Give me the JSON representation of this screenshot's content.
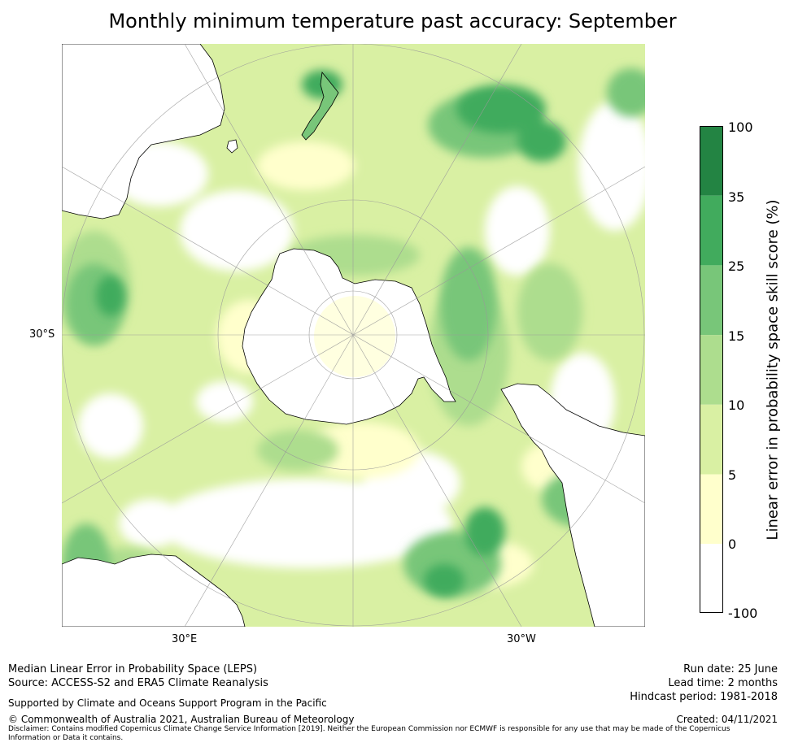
{
  "title": "Monthly minimum temperature past accuracy: September",
  "map": {
    "projection": "south-polar stereographic",
    "lat_labels": [
      "30°S"
    ],
    "lon_labels": [
      {
        "name": "east",
        "text": "30°E"
      },
      {
        "name": "west",
        "text": "30°W"
      }
    ],
    "colors": {
      "land_outline": "#000000",
      "graticule": "#999999",
      "ocean_background": "#ffffff"
    }
  },
  "colorbar": {
    "label": "Linear error in probability space skill score (%)",
    "ticks": [
      "100",
      "35",
      "25",
      "15",
      "10",
      "5",
      "0",
      "-100"
    ],
    "bins": [
      {
        "range": "35 to 100",
        "color": "#238443"
      },
      {
        "range": "25 to 35",
        "color": "#41ab5d"
      },
      {
        "range": "15 to 25",
        "color": "#78c679"
      },
      {
        "range": "10 to 15",
        "color": "#addd8e"
      },
      {
        "range": "5 to 10",
        "color": "#d9f0a3"
      },
      {
        "range": "0 to 5",
        "color": "#ffffcc"
      },
      {
        "range": "-100 to 0",
        "color": "#ffffff"
      }
    ]
  },
  "footer": {
    "left_line1": "Median Linear Error in Probability Space (LEPS)",
    "left_line2": "Source: ACCESS-S2 and ERA5 Climate Reanalysis",
    "support": "Supported by Climate and Oceans Support Program in the Pacific",
    "copyright": "© Commonwealth of Australia 2021, Australian Bureau of Meteorology",
    "disclaimer": "Disclaimer: Contains modified Copernicus Climate Change Service Information [2019]. Neither the European Commission nor ECMWF is responsible for any use that may be made of the Copernicus Information or Data it contains.",
    "run_date": "Run date: 25 June",
    "lead_time": "Lead time: 2 months",
    "hindcast": "Hindcast period: 1981-2018",
    "created": "Created: 04/11/2021"
  }
}
